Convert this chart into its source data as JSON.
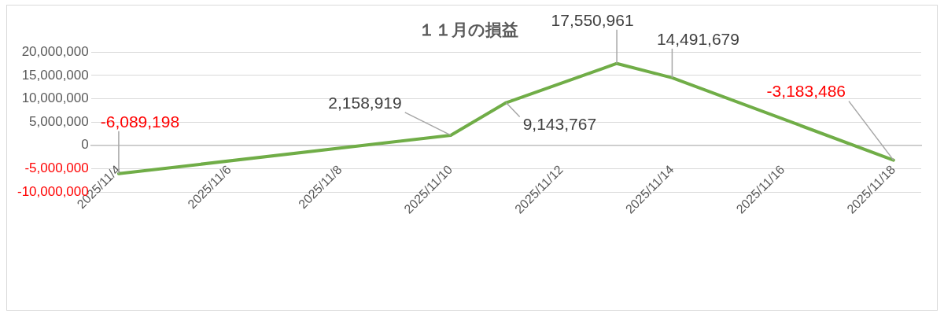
{
  "chart_data": {
    "type": "line",
    "title": "１１月の損益",
    "x": [
      "2025-11-04",
      "2025-11-10",
      "2025-11-11",
      "2025-11-13",
      "2025-11-14",
      "2025-11-18"
    ],
    "series": [
      {
        "color": "#70ad47",
        "values": [
          -6089198,
          2158919,
          9143767,
          17550961,
          14491679,
          -3183486
        ],
        "value_labels": [
          "-6,089,198",
          "2,158,919",
          "9,143,767",
          "17,550,961",
          "14,491,679",
          "-3,183,486"
        ]
      }
    ],
    "xlim": [
      "2025-11-03T12:00",
      "2025-11-18T12:00"
    ],
    "xticks": [
      {
        "value": "2025-11-04",
        "label": "2025/11/4"
      },
      {
        "value": "2025-11-06",
        "label": "2025/11/6"
      },
      {
        "value": "2025-11-08",
        "label": "2025/11/8"
      },
      {
        "value": "2025-11-10",
        "label": "2025/11/10"
      },
      {
        "value": "2025-11-12",
        "label": "2025/11/12"
      },
      {
        "value": "2025-11-14",
        "label": "2025/11/14"
      },
      {
        "value": "2025-11-16",
        "label": "2025/11/16"
      },
      {
        "value": "2025-11-18",
        "label": "2025/11/18"
      }
    ],
    "ylim": [
      -10000000,
      20000000
    ],
    "yticks": [
      {
        "value": -10000000,
        "label": "-10,000,000"
      },
      {
        "value": -5000000,
        "label": "-5,000,000"
      },
      {
        "value": 0,
        "label": "0"
      },
      {
        "value": 5000000,
        "label": "5,000,000"
      },
      {
        "value": 10000000,
        "label": "10,000,000"
      },
      {
        "value": 15000000,
        "label": "15,000,000"
      },
      {
        "value": 20000000,
        "label": "20,000,000"
      }
    ],
    "grid": "y",
    "legend": false,
    "marker": "none",
    "line_style": "solid"
  }
}
